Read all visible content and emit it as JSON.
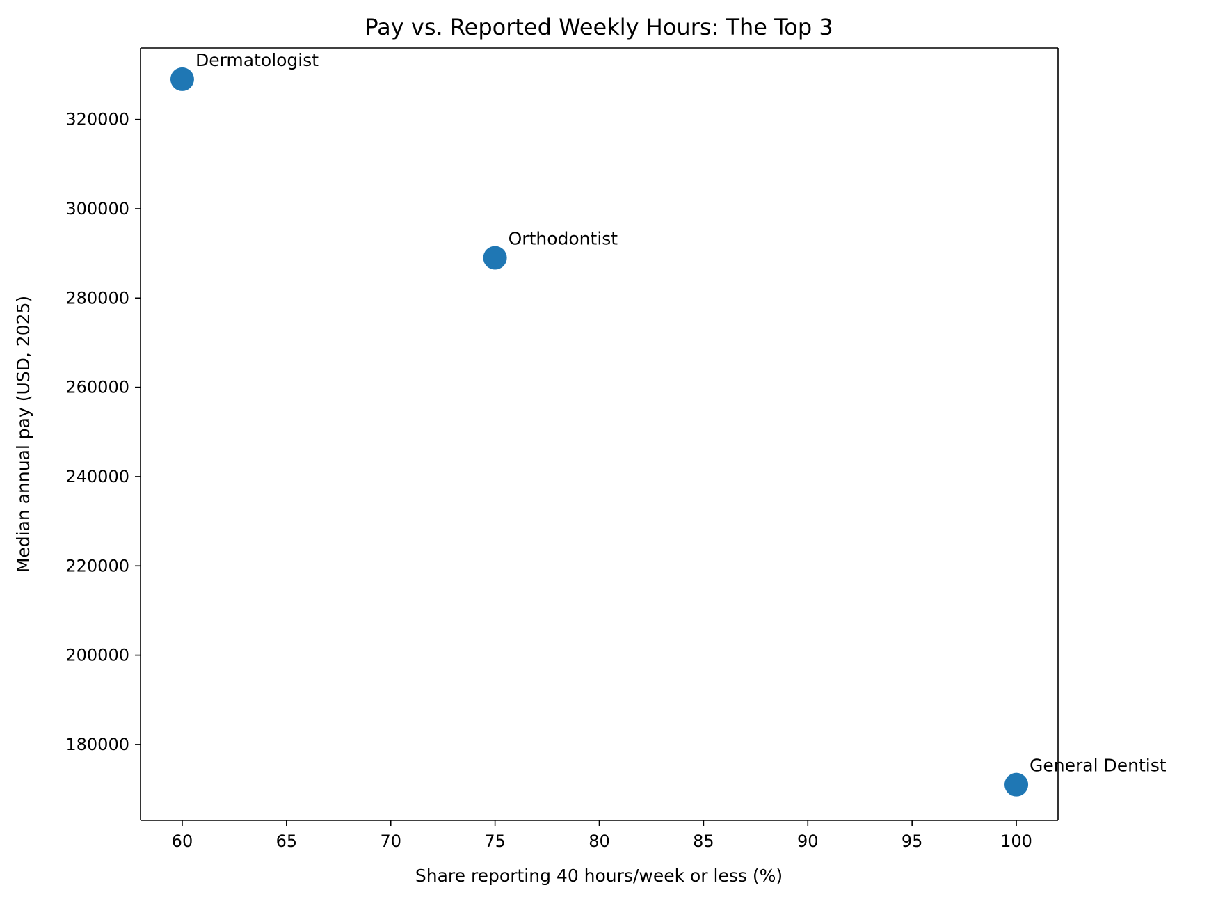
{
  "chart_data": {
    "type": "scatter",
    "title": "Pay vs. Reported Weekly Hours: The Top 3",
    "xlabel": "Share reporting 40 hours/week or less (%)",
    "ylabel": "Median annual pay (USD, 2025)",
    "xlim": [
      58,
      102
    ],
    "ylim": [
      163000,
      336000
    ],
    "xticks": [
      60,
      65,
      70,
      75,
      80,
      85,
      90,
      95,
      100
    ],
    "yticks": [
      180000,
      200000,
      220000,
      240000,
      260000,
      280000,
      300000,
      320000
    ],
    "grid": false,
    "points": [
      {
        "label": "Dermatologist",
        "x": 60,
        "y": 329000
      },
      {
        "label": "Orthodontist",
        "x": 75,
        "y": 289000
      },
      {
        "label": "General Dentist",
        "x": 100,
        "y": 171000
      }
    ],
    "colors": {
      "marker": "#1f77b4"
    }
  }
}
